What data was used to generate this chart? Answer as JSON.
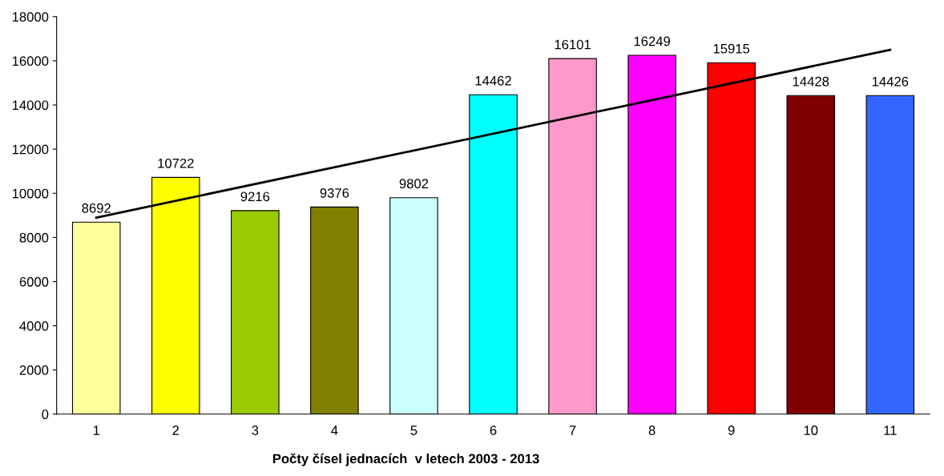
{
  "chart_data": {
    "type": "bar",
    "xlabel": "Počty čísel jednacích  v letech 2003 - 2013",
    "categories": [
      "1",
      "2",
      "3",
      "4",
      "5",
      "6",
      "7",
      "8",
      "9",
      "10",
      "11"
    ],
    "series": [
      {
        "values": [
          8692,
          10722,
          9216,
          9376,
          9802,
          14462,
          16101,
          16249,
          15915,
          14428,
          14426
        ],
        "value_labels": [
          "8692",
          "10722",
          "9216",
          "9376",
          "9802",
          "14462",
          "16101",
          "16249",
          "15915",
          "14428",
          "14426"
        ],
        "colors": [
          "#ffff99",
          "#ffff00",
          "#99cc00",
          "#808000",
          "#ccffff",
          "#00ffff",
          "#ff99cc",
          "#ff00ff",
          "#ff0000",
          "#800000",
          "#3366ff"
        ]
      },
      {
        "type": "line",
        "x": [
          "1",
          "11"
        ],
        "values": [
          8900,
          16500
        ],
        "color": "#000000"
      }
    ],
    "ylim": [
      0,
      18000
    ],
    "yticks": [
      0,
      2000,
      4000,
      6000,
      8000,
      10000,
      12000,
      14000,
      16000,
      18000
    ],
    "grid": false,
    "legend": false
  }
}
